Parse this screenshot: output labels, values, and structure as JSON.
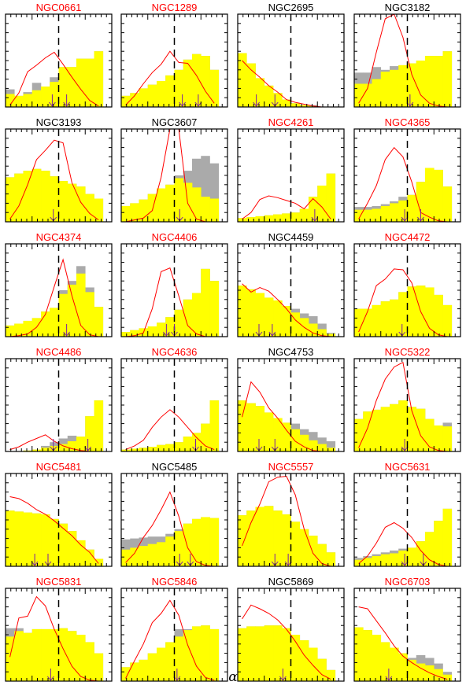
{
  "chart_data": {
    "type": "bar",
    "description_layout": "6x4 grid of small-multiple histograms",
    "xlabel": "α",
    "xlim": [
      0,
      2
    ],
    "x_ticks": [
      "0.5",
      "1",
      "1.5",
      "2"
    ],
    "x_tick_values": [
      0.5,
      1,
      1.5,
      2
    ],
    "ylim": [
      0,
      1
    ],
    "bin_edges": [
      0.0,
      0.167,
      0.333,
      0.5,
      0.667,
      0.833,
      1.0,
      1.167,
      1.333,
      1.5,
      1.667,
      1.833
    ],
    "vline_x": 1.0,
    "colors": {
      "yellow": "#ffff00",
      "gray": "#aaaaaa",
      "curve": "#ff0000",
      "arrow": "#7b1fa2",
      "title_red": "#ff0000",
      "title_black": "#000000"
    },
    "panels": [
      {
        "name": "NGC0661",
        "title_color": "red",
        "yellow": [
          0.14,
          0.12,
          0.14,
          0.18,
          0.22,
          0.27,
          0.43,
          0.43,
          0.52,
          0.52,
          0.6
        ],
        "gray": [
          0.19,
          0.12,
          0.16,
          0.26,
          0.22,
          0.32,
          0.43,
          0.43,
          0.52,
          0.52,
          0.6
        ],
        "curve": [
          0.02,
          0.15,
          0.38,
          0.45,
          0.53,
          0.59,
          0.46,
          0.32,
          0.19,
          0.07,
          0.01
        ],
        "arrows": [
          0.88,
          1.15
        ]
      },
      {
        "name": "NGC1289",
        "title_color": "red",
        "yellow": [
          0.12,
          0.15,
          0.2,
          0.24,
          0.28,
          0.34,
          0.4,
          0.51,
          0.57,
          0.55,
          0.4
        ],
        "gray": [
          0.12,
          0.15,
          0.2,
          0.24,
          0.28,
          0.34,
          0.4,
          0.51,
          0.57,
          0.55,
          0.4
        ],
        "curve": [
          0.02,
          0.12,
          0.25,
          0.37,
          0.46,
          0.6,
          0.48,
          0.47,
          0.34,
          0.17,
          0.04
        ],
        "arrows": [
          1.15,
          1.45
        ]
      },
      {
        "name": "NGC2695",
        "title_color": "black",
        "yellow": [
          0.58,
          0.47,
          0.31,
          0.23,
          0.15,
          0.08,
          0.04,
          0.02,
          0.01,
          0.0,
          0.0
        ],
        "gray": [
          0.58,
          0.47,
          0.31,
          0.23,
          0.15,
          0.08,
          0.04,
          0.02,
          0.02,
          0.0,
          0.0
        ],
        "curve": [
          0.5,
          0.4,
          0.32,
          0.23,
          0.16,
          0.08,
          0.05,
          0.03,
          0.01,
          0.0,
          0.0
        ],
        "arrows": [
          0.35,
          0.7
        ]
      },
      {
        "name": "NGC3182",
        "title_color": "black",
        "yellow": [
          0.25,
          0.25,
          0.3,
          0.38,
          0.4,
          0.45,
          0.47,
          0.5,
          0.55,
          0.55,
          0.6
        ],
        "gray": [
          0.37,
          0.37,
          0.43,
          0.4,
          0.44,
          0.45,
          0.47,
          0.5,
          0.55,
          0.55,
          0.6
        ],
        "curve": [
          0.04,
          0.2,
          0.59,
          0.95,
          1.0,
          0.75,
          0.35,
          0.13,
          0.04,
          0.01,
          0.0
        ],
        "arrows": [
          1.05
        ]
      },
      {
        "name": "NGC3193",
        "title_color": "black",
        "yellow": [
          0.48,
          0.52,
          0.55,
          0.57,
          0.55,
          0.49,
          0.44,
          0.41,
          0.38,
          0.3,
          0.25
        ],
        "gray": [
          0.48,
          0.52,
          0.55,
          0.57,
          0.55,
          0.49,
          0.44,
          0.41,
          0.38,
          0.3,
          0.25
        ],
        "curve": [
          0.03,
          0.17,
          0.4,
          0.67,
          0.77,
          0.88,
          0.85,
          0.42,
          0.21,
          0.09,
          0.02
        ],
        "arrows": [
          0.9
        ]
      },
      {
        "name": "NGC3607",
        "title_color": "black",
        "yellow": [
          0.17,
          0.2,
          0.24,
          0.3,
          0.36,
          0.4,
          0.47,
          0.42,
          0.37,
          0.27,
          0.25
        ],
        "gray": [
          0.17,
          0.2,
          0.24,
          0.3,
          0.36,
          0.4,
          0.5,
          0.55,
          0.68,
          0.71,
          0.63
        ],
        "curve": [
          0.0,
          0.02,
          0.04,
          0.12,
          0.48,
          1.0,
          1.0,
          0.2,
          0.03,
          0.0,
          0.0
        ],
        "arrows": [
          1.1
        ]
      },
      {
        "name": "NGC4261",
        "title_color": "red",
        "yellow": [
          0.04,
          0.05,
          0.06,
          0.07,
          0.08,
          0.09,
          0.1,
          0.14,
          0.27,
          0.39,
          0.52
        ],
        "gray": [
          0.04,
          0.05,
          0.06,
          0.07,
          0.08,
          0.09,
          0.1,
          0.14,
          0.27,
          0.39,
          0.52
        ],
        "curve": [
          0.03,
          0.1,
          0.24,
          0.28,
          0.26,
          0.23,
          0.2,
          0.14,
          0.25,
          0.16,
          0.03
        ],
        "arrows": [
          1.45
        ]
      },
      {
        "name": "NGC4365",
        "title_color": "red",
        "yellow": [
          0.13,
          0.13,
          0.14,
          0.17,
          0.2,
          0.23,
          0.29,
          0.43,
          0.58,
          0.56,
          0.38
        ],
        "gray": [
          0.16,
          0.16,
          0.17,
          0.19,
          0.22,
          0.27,
          0.29,
          0.43,
          0.58,
          0.56,
          0.38
        ],
        "curve": [
          0.03,
          0.2,
          0.39,
          0.67,
          0.8,
          0.7,
          0.43,
          0.1,
          0.05,
          0.01,
          0.0
        ],
        "arrows": [
          0.95,
          1.25
        ]
      },
      {
        "name": "NGC4374",
        "title_color": "red",
        "yellow": [
          0.12,
          0.14,
          0.17,
          0.2,
          0.27,
          0.31,
          0.46,
          0.56,
          0.68,
          0.48,
          0.32
        ],
        "gray": [
          0.12,
          0.14,
          0.17,
          0.2,
          0.27,
          0.31,
          0.5,
          0.6,
          0.76,
          0.53,
          0.32
        ],
        "curve": [
          0.0,
          0.01,
          0.03,
          0.1,
          0.24,
          0.54,
          0.83,
          0.44,
          0.12,
          0.02,
          0.0
        ],
        "arrows": [
          1.15
        ]
      },
      {
        "name": "NGC4406",
        "title_color": "red",
        "yellow": [
          0.05,
          0.07,
          0.09,
          0.11,
          0.15,
          0.21,
          0.29,
          0.4,
          0.47,
          0.73,
          0.6
        ],
        "gray": [
          0.05,
          0.07,
          0.09,
          0.11,
          0.15,
          0.21,
          0.29,
          0.4,
          0.47,
          0.73,
          0.6
        ],
        "curve": [
          0.0,
          0.01,
          0.04,
          0.3,
          0.7,
          0.74,
          0.44,
          0.12,
          0.03,
          0.0,
          0.0
        ],
        "arrows": [
          0.85,
          1.0
        ]
      },
      {
        "name": "NGC4459",
        "title_color": "black",
        "yellow": [
          0.55,
          0.51,
          0.47,
          0.42,
          0.39,
          0.33,
          0.26,
          0.2,
          0.14,
          0.08,
          0.03
        ],
        "gray": [
          0.55,
          0.51,
          0.47,
          0.42,
          0.39,
          0.33,
          0.3,
          0.25,
          0.22,
          0.14,
          0.04
        ],
        "curve": [
          0.57,
          0.48,
          0.53,
          0.49,
          0.4,
          0.3,
          0.18,
          0.1,
          0.04,
          0.01,
          0.0
        ],
        "arrows": [
          0.4,
          0.65
        ]
      },
      {
        "name": "NGC4472",
        "title_color": "red",
        "yellow": [
          0.3,
          0.3,
          0.34,
          0.38,
          0.4,
          0.48,
          0.54,
          0.55,
          0.53,
          0.45,
          0.34
        ],
        "gray": [
          0.3,
          0.3,
          0.34,
          0.38,
          0.4,
          0.48,
          0.54,
          0.55,
          0.53,
          0.45,
          0.34
        ],
        "curve": [
          0.05,
          0.27,
          0.55,
          0.62,
          0.73,
          0.72,
          0.58,
          0.27,
          0.09,
          0.02,
          0.0
        ],
        "arrows": [
          0.9
        ]
      },
      {
        "name": "NGC4486",
        "title_color": "red",
        "yellow": [
          0.0,
          0.0,
          0.01,
          0.02,
          0.04,
          0.06,
          0.08,
          0.11,
          0.16,
          0.38,
          0.55
        ],
        "gray": [
          0.0,
          0.0,
          0.01,
          0.02,
          0.06,
          0.1,
          0.14,
          0.17,
          0.16,
          0.38,
          0.55
        ],
        "curve": [
          0.02,
          0.05,
          0.1,
          0.14,
          0.18,
          0.11,
          0.06,
          0.03,
          0.01,
          0.0,
          0.0
        ],
        "arrows": [
          0.9,
          1.55
        ]
      },
      {
        "name": "NGC4636",
        "title_color": "red",
        "yellow": [
          0.02,
          0.03,
          0.04,
          0.05,
          0.07,
          0.08,
          0.1,
          0.16,
          0.2,
          0.3,
          0.55
        ],
        "gray": [
          0.02,
          0.03,
          0.04,
          0.05,
          0.07,
          0.08,
          0.1,
          0.16,
          0.2,
          0.3,
          0.55
        ],
        "curve": [
          0.02,
          0.06,
          0.12,
          0.26,
          0.37,
          0.45,
          0.37,
          0.26,
          0.15,
          0.06,
          0.02
        ],
        "arrows": [
          1.4
        ]
      },
      {
        "name": "NGC4753",
        "title_color": "black",
        "yellow": [
          0.55,
          0.52,
          0.49,
          0.42,
          0.36,
          0.31,
          0.24,
          0.18,
          0.12,
          0.08,
          0.04
        ],
        "gray": [
          0.55,
          0.52,
          0.49,
          0.42,
          0.36,
          0.31,
          0.3,
          0.24,
          0.21,
          0.15,
          0.11
        ],
        "curve": [
          0.37,
          0.75,
          0.64,
          0.47,
          0.36,
          0.23,
          0.11,
          0.05,
          0.01,
          0.0,
          0.0
        ],
        "arrows": [
          0.4,
          0.7
        ]
      },
      {
        "name": "NGC5322",
        "title_color": "red",
        "yellow": [
          0.35,
          0.43,
          0.45,
          0.48,
          0.51,
          0.55,
          0.48,
          0.46,
          0.35,
          0.28,
          0.27
        ],
        "gray": [
          0.35,
          0.43,
          0.45,
          0.48,
          0.51,
          0.55,
          0.48,
          0.46,
          0.35,
          0.28,
          0.31
        ],
        "curve": [
          0.04,
          0.25,
          0.55,
          0.78,
          0.91,
          0.96,
          0.44,
          0.17,
          0.05,
          0.01,
          0.0
        ],
        "arrows": [
          0.95
        ]
      },
      {
        "name": "NGC5481",
        "title_color": "red",
        "yellow": [
          0.6,
          0.59,
          0.58,
          0.57,
          0.56,
          0.51,
          0.46,
          0.38,
          0.28,
          0.18,
          0.08
        ],
        "gray": [
          0.6,
          0.59,
          0.58,
          0.57,
          0.56,
          0.51,
          0.46,
          0.38,
          0.28,
          0.18,
          0.08
        ],
        "curve": [
          0.75,
          0.73,
          0.68,
          0.61,
          0.56,
          0.49,
          0.41,
          0.33,
          0.23,
          0.15,
          0.03
        ],
        "arrows": [
          0.55,
          0.8
        ]
      },
      {
        "name": "NGC5485",
        "title_color": "black",
        "yellow": [
          0.18,
          0.2,
          0.22,
          0.24,
          0.26,
          0.32,
          0.38,
          0.46,
          0.51,
          0.53,
          0.52
        ],
        "gray": [
          0.29,
          0.3,
          0.31,
          0.32,
          0.32,
          0.35,
          0.4,
          0.46,
          0.51,
          0.53,
          0.52
        ],
        "curve": [
          0.04,
          0.14,
          0.31,
          0.44,
          0.61,
          0.8,
          0.54,
          0.2,
          0.05,
          0.01,
          0.0
        ],
        "arrows": [
          1.1,
          1.3
        ]
      },
      {
        "name": "NGC5557",
        "title_color": "red",
        "yellow": [
          0.55,
          0.6,
          0.64,
          0.65,
          0.6,
          0.56,
          0.48,
          0.4,
          0.33,
          0.24,
          0.15
        ],
        "gray": [
          0.55,
          0.6,
          0.64,
          0.65,
          0.6,
          0.56,
          0.48,
          0.4,
          0.33,
          0.24,
          0.15
        ],
        "curve": [
          0.22,
          0.47,
          0.67,
          0.91,
          0.96,
          0.97,
          0.77,
          0.4,
          0.14,
          0.03,
          0.0
        ],
        "arrows": [
          0.7,
          0.95
        ]
      },
      {
        "name": "NGC5631",
        "title_color": "red",
        "yellow": [
          0.07,
          0.09,
          0.11,
          0.13,
          0.14,
          0.17,
          0.2,
          0.27,
          0.37,
          0.49,
          0.62
        ],
        "gray": [
          0.09,
          0.11,
          0.13,
          0.15,
          0.17,
          0.19,
          0.2,
          0.27,
          0.37,
          0.49,
          0.62
        ],
        "curve": [
          0.03,
          0.11,
          0.25,
          0.42,
          0.47,
          0.41,
          0.31,
          0.17,
          0.07,
          0.02,
          0.0
        ],
        "arrows": [
          0.95,
          1.3
        ]
      },
      {
        "name": "NGC5831",
        "title_color": "red",
        "yellow": [
          0.48,
          0.54,
          0.52,
          0.56,
          0.56,
          0.56,
          0.57,
          0.54,
          0.5,
          0.42,
          0.3
        ],
        "gray": [
          0.57,
          0.57,
          0.52,
          0.56,
          0.56,
          0.56,
          0.57,
          0.54,
          0.5,
          0.42,
          0.3
        ],
        "curve": [
          0.26,
          0.68,
          0.7,
          0.91,
          0.81,
          0.56,
          0.35,
          0.16,
          0.05,
          0.01,
          0.0
        ],
        "arrows": [
          0.85
        ]
      },
      {
        "name": "NGC5846",
        "title_color": "red",
        "yellow": [
          0.15,
          0.2,
          0.23,
          0.3,
          0.36,
          0.42,
          0.48,
          0.55,
          0.59,
          0.6,
          0.56
        ],
        "gray": [
          0.15,
          0.2,
          0.23,
          0.3,
          0.36,
          0.42,
          0.56,
          0.56,
          0.59,
          0.6,
          0.56
        ],
        "curve": [
          0.03,
          0.22,
          0.4,
          0.63,
          0.73,
          0.87,
          0.71,
          0.39,
          0.16,
          0.04,
          0.01
        ],
        "arrows": [
          1.05
        ]
      },
      {
        "name": "NGC5869",
        "title_color": "black",
        "yellow": [
          0.57,
          0.59,
          0.59,
          0.6,
          0.6,
          0.57,
          0.5,
          0.44,
          0.36,
          0.24,
          0.12
        ],
        "gray": [
          0.57,
          0.59,
          0.59,
          0.6,
          0.6,
          0.57,
          0.5,
          0.44,
          0.36,
          0.24,
          0.12
        ],
        "curve": [
          0.67,
          0.82,
          0.78,
          0.73,
          0.66,
          0.56,
          0.43,
          0.28,
          0.17,
          0.07,
          0.02
        ],
        "arrows": [
          0.85
        ]
      },
      {
        "name": "NGC6703",
        "title_color": "red",
        "yellow": [
          0.58,
          0.55,
          0.5,
          0.42,
          0.36,
          0.3,
          0.23,
          0.19,
          0.17,
          0.13,
          0.07
        ],
        "gray": [
          0.58,
          0.55,
          0.5,
          0.42,
          0.36,
          0.3,
          0.25,
          0.28,
          0.25,
          0.19,
          0.1
        ],
        "curve": [
          0.8,
          0.78,
          0.65,
          0.52,
          0.38,
          0.27,
          0.2,
          0.14,
          0.09,
          0.05,
          0.02
        ],
        "arrows": [
          0.65
        ]
      }
    ]
  }
}
